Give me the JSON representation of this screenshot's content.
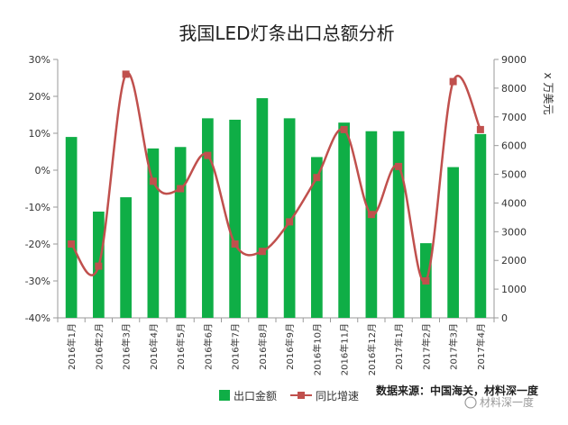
{
  "chart_data": {
    "type": "bar",
    "title": "我国LED灯条出口总额分析",
    "categories": [
      "2016年1月",
      "2016年2月",
      "2016年3月",
      "2016年4月",
      "2016年5月",
      "2016年6月",
      "2016年7月",
      "2016年8月",
      "2016年9月",
      "2016年10月",
      "2016年11月",
      "2016年12月",
      "2017年1月",
      "2017年2月",
      "2017年3月",
      "2017年4月"
    ],
    "series": [
      {
        "name": "出口金额",
        "axis": "right",
        "color": "#0fae46",
        "values": [
          6300,
          3700,
          4200,
          5900,
          5950,
          6950,
          6900,
          7650,
          6950,
          5600,
          6800,
          6500,
          6500,
          2600,
          5250,
          6400
        ]
      },
      {
        "name": "同比增速",
        "axis": "left",
        "color": "#c0504d",
        "values": [
          -20,
          -26,
          26,
          -3,
          -5,
          4,
          -20,
          -22,
          -14,
          -2,
          11,
          -12,
          1,
          -30,
          24,
          11
        ]
      }
    ],
    "y_left": {
      "ticks": [
        "30%",
        "20%",
        "10%",
        "0%",
        "-10%",
        "-20%",
        "-30%",
        "-40%"
      ],
      "ylim": [
        -40,
        30
      ]
    },
    "y_right": {
      "ticks": [
        "9000",
        "8000",
        "7000",
        "6000",
        "5000",
        "4000",
        "3000",
        "2000",
        "1000",
        "0"
      ],
      "ylim": [
        0,
        9000
      ],
      "label": "x 万美元"
    },
    "grid": false,
    "legend_position": "bottom-left",
    "source": "数据来源：中国海关，材料深一度",
    "watermark": "材料深一度"
  }
}
